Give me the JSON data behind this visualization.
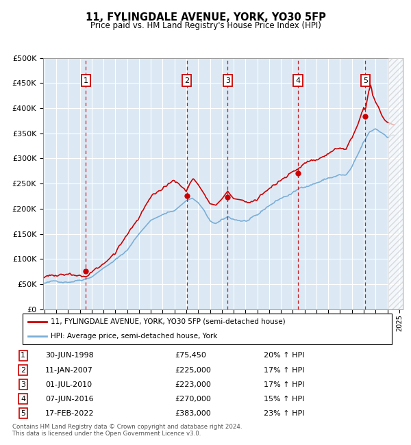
{
  "title": "11, FYLINGDALE AVENUE, YORK, YO30 5FP",
  "subtitle": "Price paid vs. HM Land Registry's House Price Index (HPI)",
  "footer": "Contains HM Land Registry data © Crown copyright and database right 2024.\nThis data is licensed under the Open Government Licence v3.0.",
  "legend_line1": "11, FYLINGDALE AVENUE, YORK, YO30 5FP (semi-detached house)",
  "legend_line2": "HPI: Average price, semi-detached house, York",
  "red_color": "#cc0000",
  "blue_color": "#7aaed6",
  "ylim": [
    0,
    500000
  ],
  "yticks": [
    0,
    50000,
    100000,
    150000,
    200000,
    250000,
    300000,
    350000,
    400000,
    450000,
    500000
  ],
  "ytick_labels": [
    "£0",
    "£50K",
    "£100K",
    "£150K",
    "£200K",
    "£250K",
    "£300K",
    "£350K",
    "£400K",
    "£450K",
    "£500K"
  ],
  "xlim_start": 1994.9,
  "xlim_end": 2025.3,
  "sales": [
    {
      "num": 1,
      "year": 1998.5,
      "price": 75450,
      "date": "30-JUN-1998",
      "price_str": "£75,450",
      "hpi_str": "20% ↑ HPI"
    },
    {
      "num": 2,
      "year": 2007.04,
      "price": 225000,
      "date": "11-JAN-2007",
      "price_str": "£225,000",
      "hpi_str": "17% ↑ HPI"
    },
    {
      "num": 3,
      "year": 2010.5,
      "price": 223000,
      "date": "01-JUL-2010",
      "price_str": "£223,000",
      "hpi_str": "17% ↑ HPI"
    },
    {
      "num": 4,
      "year": 2016.44,
      "price": 270000,
      "date": "07-JUN-2016",
      "price_str": "£270,000",
      "hpi_str": "15% ↑ HPI"
    },
    {
      "num": 5,
      "year": 2022.13,
      "price": 383000,
      "date": "17-FEB-2022",
      "price_str": "£383,000",
      "hpi_str": "23% ↑ HPI"
    }
  ],
  "chart_bg_color": "#dce9f5",
  "grid_color": "#ffffff",
  "box_edge": "#cc0000",
  "hatch_start": 2024.08
}
